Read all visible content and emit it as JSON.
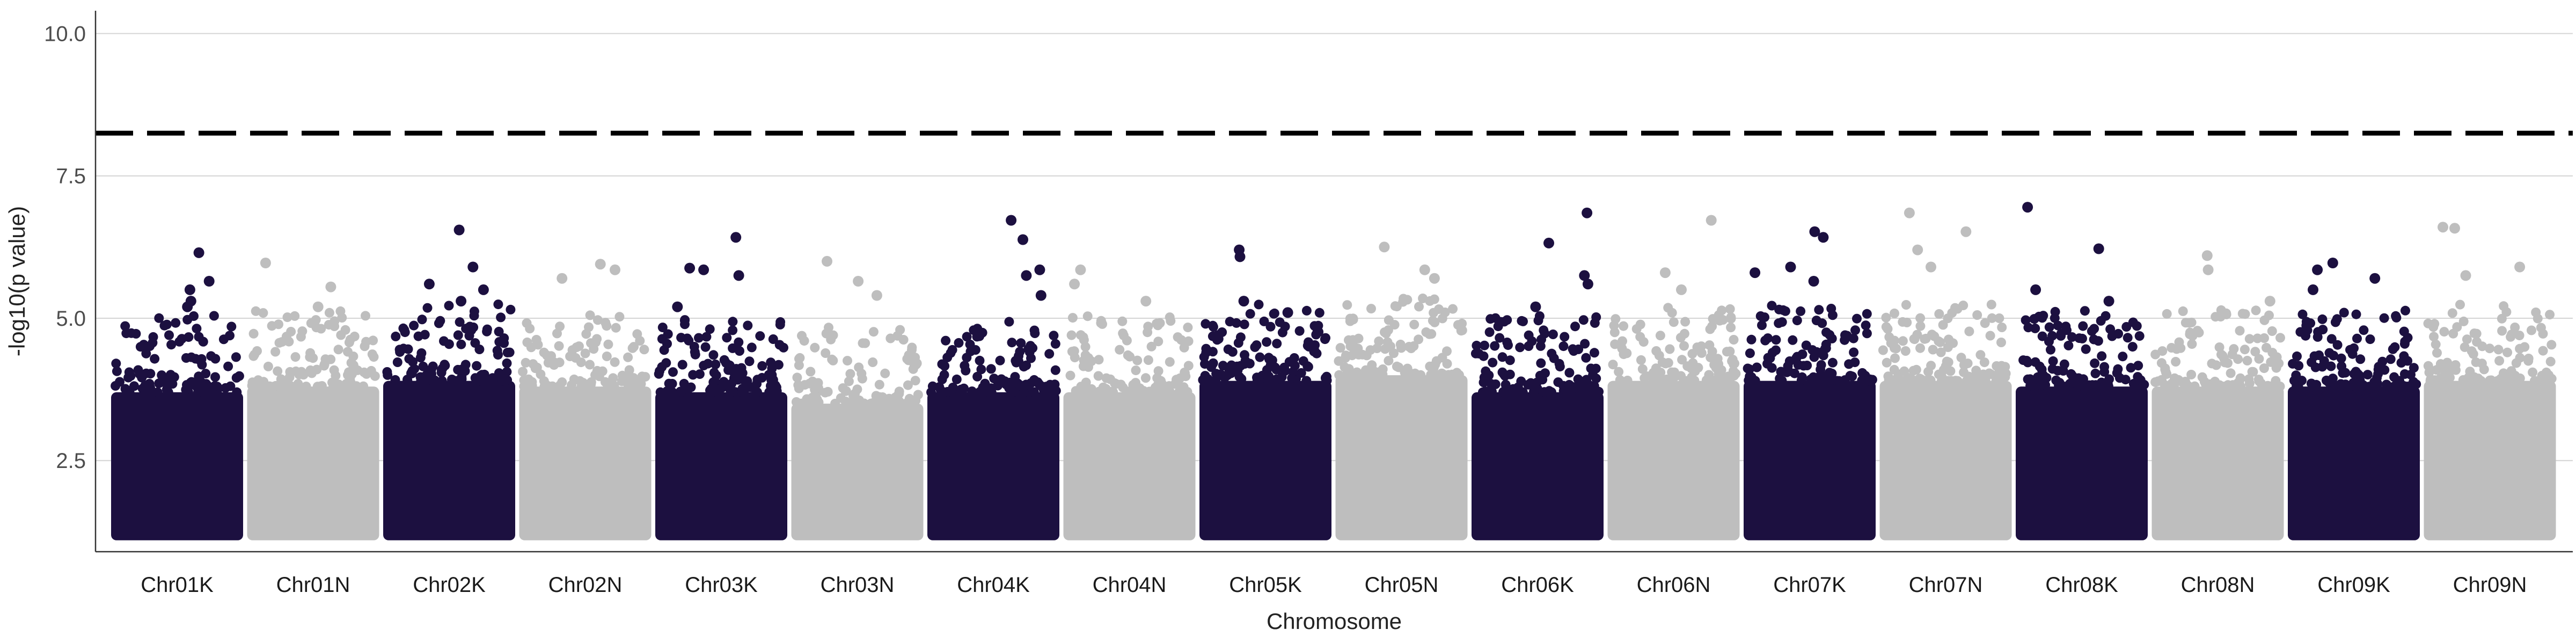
{
  "chart_data": {
    "type": "scatter",
    "subtype": "manhattan",
    "title": "",
    "xlabel": "Chromosome",
    "ylabel": "-log10(p value)",
    "ylim": [
      0.9,
      10.4
    ],
    "yticks": [
      2.5,
      5.0,
      7.5,
      10.0
    ],
    "ytick_labels": [
      "2.5",
      "5.0",
      "7.5",
      "10.0"
    ],
    "grid": "horizontal major gridlines",
    "legend": "none",
    "threshold": {
      "value": 8.25,
      "style": "dashed",
      "color": "#000000"
    },
    "colors": [
      "#1c1040",
      "#bebebe"
    ],
    "categories": [
      "Chr01K",
      "Chr01N",
      "Chr02K",
      "Chr02N",
      "Chr03K",
      "Chr03N",
      "Chr04K",
      "Chr04N",
      "Chr05K",
      "Chr05N",
      "Chr06K",
      "Chr06N",
      "Chr07K",
      "Chr07N",
      "Chr08K",
      "Chr08N",
      "Chr09K",
      "Chr09N"
    ],
    "band_top_values": [
      3.7,
      3.8,
      3.9,
      3.8,
      3.7,
      3.5,
      3.7,
      3.7,
      3.9,
      4.0,
      3.7,
      3.9,
      3.9,
      3.9,
      3.8,
      3.8,
      3.8,
      3.9
    ],
    "top_hits": [
      {
        "chr": "Chr01K",
        "y": 6.15
      },
      {
        "chr": "Chr01K",
        "y": 5.65
      },
      {
        "chr": "Chr01K",
        "y": 5.5
      },
      {
        "chr": "Chr01K",
        "y": 5.3
      },
      {
        "chr": "Chr01K",
        "y": 5.2
      },
      {
        "chr": "Chr01N",
        "y": 5.97
      },
      {
        "chr": "Chr01N",
        "y": 5.55
      },
      {
        "chr": "Chr01N",
        "y": 5.2
      },
      {
        "chr": "Chr02K",
        "y": 6.55
      },
      {
        "chr": "Chr02K",
        "y": 5.9
      },
      {
        "chr": "Chr02K",
        "y": 5.6
      },
      {
        "chr": "Chr02K",
        "y": 5.5
      },
      {
        "chr": "Chr02K",
        "y": 5.3
      },
      {
        "chr": "Chr02N",
        "y": 5.95
      },
      {
        "chr": "Chr02N",
        "y": 5.85
      },
      {
        "chr": "Chr02N",
        "y": 5.7
      },
      {
        "chr": "Chr03K",
        "y": 6.42
      },
      {
        "chr": "Chr03K",
        "y": 5.88
      },
      {
        "chr": "Chr03K",
        "y": 5.85
      },
      {
        "chr": "Chr03K",
        "y": 5.75
      },
      {
        "chr": "Chr03K",
        "y": 5.2
      },
      {
        "chr": "Chr03N",
        "y": 6.0
      },
      {
        "chr": "Chr03N",
        "y": 5.65
      },
      {
        "chr": "Chr03N",
        "y": 5.4
      },
      {
        "chr": "Chr04K",
        "y": 6.38
      },
      {
        "chr": "Chr04K",
        "y": 6.72
      },
      {
        "chr": "Chr04K",
        "y": 5.85
      },
      {
        "chr": "Chr04K",
        "y": 5.75
      },
      {
        "chr": "Chr04K",
        "y": 5.4
      },
      {
        "chr": "Chr04N",
        "y": 5.85
      },
      {
        "chr": "Chr04N",
        "y": 5.6
      },
      {
        "chr": "Chr04N",
        "y": 5.3
      },
      {
        "chr": "Chr05K",
        "y": 6.2
      },
      {
        "chr": "Chr05K",
        "y": 6.08
      },
      {
        "chr": "Chr05K",
        "y": 5.3
      },
      {
        "chr": "Chr05K",
        "y": 5.1
      },
      {
        "chr": "Chr05N",
        "y": 6.25
      },
      {
        "chr": "Chr05N",
        "y": 5.85
      },
      {
        "chr": "Chr05N",
        "y": 5.7
      },
      {
        "chr": "Chr06K",
        "y": 6.85
      },
      {
        "chr": "Chr06K",
        "y": 6.32
      },
      {
        "chr": "Chr06K",
        "y": 5.75
      },
      {
        "chr": "Chr06K",
        "y": 5.6
      },
      {
        "chr": "Chr06K",
        "y": 5.2
      },
      {
        "chr": "Chr06N",
        "y": 6.72
      },
      {
        "chr": "Chr06N",
        "y": 5.8
      },
      {
        "chr": "Chr06N",
        "y": 5.5
      },
      {
        "chr": "Chr07K",
        "y": 6.52
      },
      {
        "chr": "Chr07K",
        "y": 6.42
      },
      {
        "chr": "Chr07K",
        "y": 5.9
      },
      {
        "chr": "Chr07K",
        "y": 5.8
      },
      {
        "chr": "Chr07K",
        "y": 5.65
      },
      {
        "chr": "Chr07N",
        "y": 6.85
      },
      {
        "chr": "Chr07N",
        "y": 6.52
      },
      {
        "chr": "Chr07N",
        "y": 6.2
      },
      {
        "chr": "Chr07N",
        "y": 5.9
      },
      {
        "chr": "Chr08K",
        "y": 6.95
      },
      {
        "chr": "Chr08K",
        "y": 6.22
      },
      {
        "chr": "Chr08K",
        "y": 5.5
      },
      {
        "chr": "Chr08K",
        "y": 5.3
      },
      {
        "chr": "Chr08N",
        "y": 6.1
      },
      {
        "chr": "Chr08N",
        "y": 5.85
      },
      {
        "chr": "Chr08N",
        "y": 5.3
      },
      {
        "chr": "Chr09K",
        "y": 5.97
      },
      {
        "chr": "Chr09K",
        "y": 5.85
      },
      {
        "chr": "Chr09K",
        "y": 5.7
      },
      {
        "chr": "Chr09K",
        "y": 5.5
      },
      {
        "chr": "Chr09N",
        "y": 6.6
      },
      {
        "chr": "Chr09N",
        "y": 6.58
      },
      {
        "chr": "Chr09N",
        "y": 5.9
      },
      {
        "chr": "Chr09N",
        "y": 5.75
      }
    ]
  }
}
